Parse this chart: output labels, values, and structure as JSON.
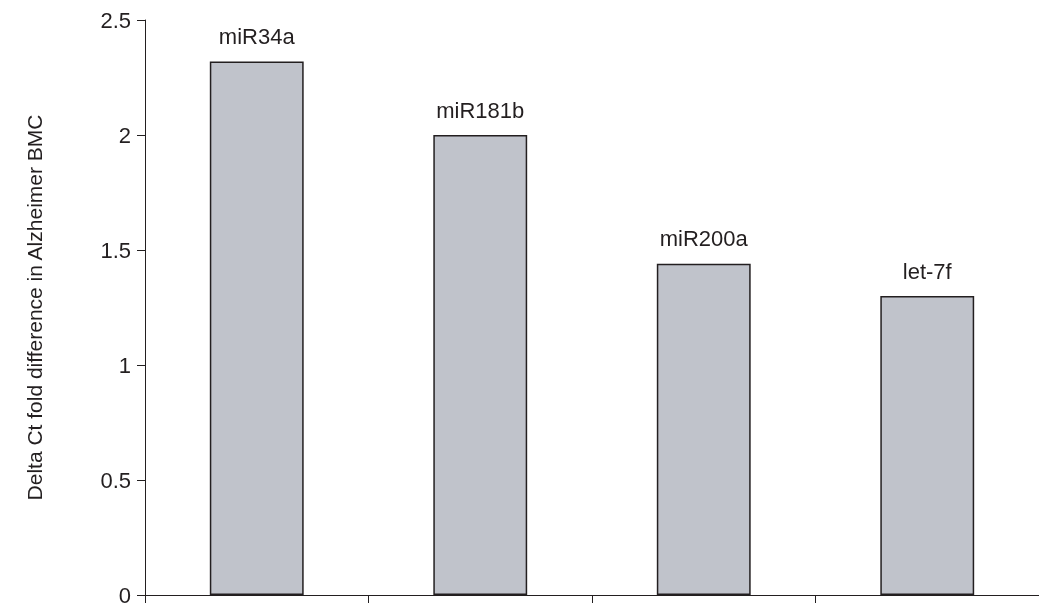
{
  "chart_data": {
    "type": "bar",
    "ylabel": "Delta Ct fold difference in Alzheimer BMC",
    "categories": [
      "miR34a",
      "miR181b",
      "miR200a",
      "let-7f"
    ],
    "values": [
      2.32,
      2.0,
      1.44,
      1.3
    ],
    "color": "#c0c3cb",
    "ylim": [
      0,
      2.5
    ],
    "yticks": [
      0,
      0.5,
      1,
      1.5,
      2,
      2.5
    ]
  }
}
